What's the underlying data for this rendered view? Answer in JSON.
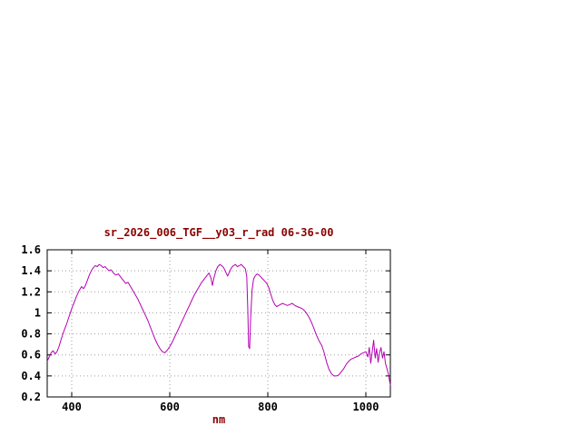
{
  "chart": {
    "title_color": "#8b0000",
    "line_color": "#b400b4",
    "grid_color": "#9f9f9f",
    "axis_color": "#000000",
    "border_color": "#000000",
    "background": "#ffffff"
  },
  "chart_data": {
    "type": "line",
    "title": "sr_2026_006_TGF__y03_r_rad 06-36-00",
    "xlabel": "nm",
    "ylabel": "",
    "xlim": [
      350,
      1050
    ],
    "ylim": [
      0.2,
      1.6
    ],
    "xticks": [
      400,
      600,
      800,
      1000
    ],
    "yticks": [
      0.2,
      0.4,
      0.6,
      0.8,
      1,
      1.2,
      1.4,
      1.6
    ],
    "grid": true,
    "legend": "none",
    "series": [
      {
        "x": [
          350,
          354,
          358,
          362,
          366,
          370,
          374,
          378,
          382,
          386,
          390,
          395,
          400,
          405,
          410,
          415,
          420,
          424,
          428,
          432,
          436,
          440,
          444,
          448,
          452,
          456,
          460,
          464,
          468,
          472,
          476,
          480,
          485,
          490,
          495,
          500,
          505,
          510,
          515,
          520,
          525,
          530,
          535,
          540,
          545,
          550,
          555,
          560,
          565,
          570,
          575,
          580,
          585,
          590,
          595,
          600,
          605,
          610,
          615,
          620,
          625,
          630,
          635,
          640,
          645,
          650,
          655,
          660,
          665,
          670,
          675,
          680,
          684,
          687,
          690,
          694,
          698,
          702,
          706,
          710,
          714,
          718,
          722,
          726,
          730,
          734,
          738,
          742,
          746,
          750,
          754,
          757,
          759,
          761,
          763,
          765,
          768,
          771,
          774,
          778,
          782,
          786,
          790,
          794,
          798,
          802,
          806,
          810,
          814,
          818,
          822,
          826,
          830,
          835,
          840,
          845,
          850,
          855,
          860,
          865,
          870,
          875,
          880,
          885,
          890,
          895,
          900,
          905,
          910,
          915,
          920,
          925,
          930,
          935,
          940,
          945,
          950,
          955,
          960,
          965,
          970,
          975,
          980,
          985,
          990,
          995,
          1000,
          1004,
          1007,
          1010,
          1013,
          1016,
          1019,
          1022,
          1025,
          1028,
          1031,
          1034,
          1037,
          1040,
          1043,
          1046,
          1050
        ],
        "y": [
          0.54,
          0.58,
          0.62,
          0.64,
          0.61,
          0.63,
          0.68,
          0.74,
          0.8,
          0.85,
          0.9,
          0.97,
          1.04,
          1.1,
          1.16,
          1.21,
          1.25,
          1.23,
          1.26,
          1.31,
          1.36,
          1.4,
          1.43,
          1.45,
          1.44,
          1.46,
          1.45,
          1.43,
          1.44,
          1.42,
          1.4,
          1.41,
          1.38,
          1.36,
          1.37,
          1.34,
          1.31,
          1.28,
          1.29,
          1.25,
          1.21,
          1.17,
          1.13,
          1.08,
          1.03,
          0.98,
          0.93,
          0.87,
          0.81,
          0.75,
          0.7,
          0.66,
          0.63,
          0.62,
          0.645,
          0.68,
          0.72,
          0.77,
          0.82,
          0.87,
          0.92,
          0.97,
          1.02,
          1.07,
          1.12,
          1.17,
          1.21,
          1.25,
          1.29,
          1.32,
          1.35,
          1.38,
          1.33,
          1.26,
          1.33,
          1.4,
          1.44,
          1.46,
          1.45,
          1.43,
          1.39,
          1.35,
          1.39,
          1.43,
          1.45,
          1.46,
          1.44,
          1.45,
          1.46,
          1.44,
          1.42,
          1.35,
          1.05,
          0.68,
          0.66,
          0.95,
          1.22,
          1.32,
          1.35,
          1.37,
          1.36,
          1.34,
          1.32,
          1.3,
          1.28,
          1.24,
          1.18,
          1.12,
          1.08,
          1.06,
          1.07,
          1.08,
          1.09,
          1.08,
          1.07,
          1.08,
          1.09,
          1.07,
          1.06,
          1.05,
          1.04,
          1.02,
          0.99,
          0.95,
          0.9,
          0.84,
          0.78,
          0.73,
          0.69,
          0.62,
          0.53,
          0.46,
          0.42,
          0.4,
          0.4,
          0.41,
          0.44,
          0.47,
          0.51,
          0.54,
          0.56,
          0.57,
          0.58,
          0.59,
          0.61,
          0.62,
          0.63,
          0.58,
          0.67,
          0.52,
          0.63,
          0.74,
          0.57,
          0.66,
          0.53,
          0.62,
          0.67,
          0.57,
          0.63,
          0.52,
          0.47,
          0.42,
          0.31
        ]
      }
    ]
  }
}
